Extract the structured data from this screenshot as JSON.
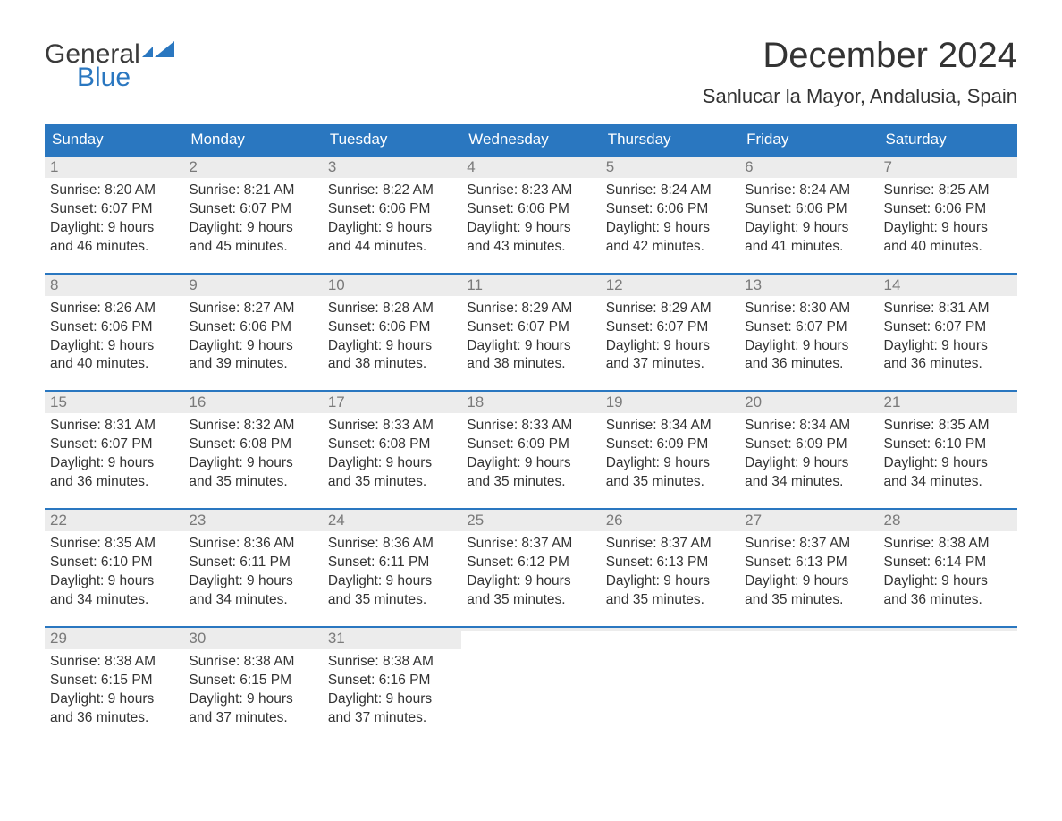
{
  "logo": {
    "line1": "General",
    "line2": "Blue",
    "flag_color": "#2a77c0"
  },
  "title": "December 2024",
  "location": "Sanlucar la Mayor, Andalusia, Spain",
  "colors": {
    "header_bg": "#2a77c0",
    "header_text": "#ffffff",
    "daynum_bg": "#ececec",
    "daynum_text": "#7a7a7a",
    "body_text": "#333333",
    "row_border": "#2a77c0"
  },
  "weekdays": [
    "Sunday",
    "Monday",
    "Tuesday",
    "Wednesday",
    "Thursday",
    "Friday",
    "Saturday"
  ],
  "weeks": [
    [
      {
        "n": "1",
        "sunrise": "Sunrise: 8:20 AM",
        "sunset": "Sunset: 6:07 PM",
        "d1": "Daylight: 9 hours",
        "d2": "and 46 minutes."
      },
      {
        "n": "2",
        "sunrise": "Sunrise: 8:21 AM",
        "sunset": "Sunset: 6:07 PM",
        "d1": "Daylight: 9 hours",
        "d2": "and 45 minutes."
      },
      {
        "n": "3",
        "sunrise": "Sunrise: 8:22 AM",
        "sunset": "Sunset: 6:06 PM",
        "d1": "Daylight: 9 hours",
        "d2": "and 44 minutes."
      },
      {
        "n": "4",
        "sunrise": "Sunrise: 8:23 AM",
        "sunset": "Sunset: 6:06 PM",
        "d1": "Daylight: 9 hours",
        "d2": "and 43 minutes."
      },
      {
        "n": "5",
        "sunrise": "Sunrise: 8:24 AM",
        "sunset": "Sunset: 6:06 PM",
        "d1": "Daylight: 9 hours",
        "d2": "and 42 minutes."
      },
      {
        "n": "6",
        "sunrise": "Sunrise: 8:24 AM",
        "sunset": "Sunset: 6:06 PM",
        "d1": "Daylight: 9 hours",
        "d2": "and 41 minutes."
      },
      {
        "n": "7",
        "sunrise": "Sunrise: 8:25 AM",
        "sunset": "Sunset: 6:06 PM",
        "d1": "Daylight: 9 hours",
        "d2": "and 40 minutes."
      }
    ],
    [
      {
        "n": "8",
        "sunrise": "Sunrise: 8:26 AM",
        "sunset": "Sunset: 6:06 PM",
        "d1": "Daylight: 9 hours",
        "d2": "and 40 minutes."
      },
      {
        "n": "9",
        "sunrise": "Sunrise: 8:27 AM",
        "sunset": "Sunset: 6:06 PM",
        "d1": "Daylight: 9 hours",
        "d2": "and 39 minutes."
      },
      {
        "n": "10",
        "sunrise": "Sunrise: 8:28 AM",
        "sunset": "Sunset: 6:06 PM",
        "d1": "Daylight: 9 hours",
        "d2": "and 38 minutes."
      },
      {
        "n": "11",
        "sunrise": "Sunrise: 8:29 AM",
        "sunset": "Sunset: 6:07 PM",
        "d1": "Daylight: 9 hours",
        "d2": "and 38 minutes."
      },
      {
        "n": "12",
        "sunrise": "Sunrise: 8:29 AM",
        "sunset": "Sunset: 6:07 PM",
        "d1": "Daylight: 9 hours",
        "d2": "and 37 minutes."
      },
      {
        "n": "13",
        "sunrise": "Sunrise: 8:30 AM",
        "sunset": "Sunset: 6:07 PM",
        "d1": "Daylight: 9 hours",
        "d2": "and 36 minutes."
      },
      {
        "n": "14",
        "sunrise": "Sunrise: 8:31 AM",
        "sunset": "Sunset: 6:07 PM",
        "d1": "Daylight: 9 hours",
        "d2": "and 36 minutes."
      }
    ],
    [
      {
        "n": "15",
        "sunrise": "Sunrise: 8:31 AM",
        "sunset": "Sunset: 6:07 PM",
        "d1": "Daylight: 9 hours",
        "d2": "and 36 minutes."
      },
      {
        "n": "16",
        "sunrise": "Sunrise: 8:32 AM",
        "sunset": "Sunset: 6:08 PM",
        "d1": "Daylight: 9 hours",
        "d2": "and 35 minutes."
      },
      {
        "n": "17",
        "sunrise": "Sunrise: 8:33 AM",
        "sunset": "Sunset: 6:08 PM",
        "d1": "Daylight: 9 hours",
        "d2": "and 35 minutes."
      },
      {
        "n": "18",
        "sunrise": "Sunrise: 8:33 AM",
        "sunset": "Sunset: 6:09 PM",
        "d1": "Daylight: 9 hours",
        "d2": "and 35 minutes."
      },
      {
        "n": "19",
        "sunrise": "Sunrise: 8:34 AM",
        "sunset": "Sunset: 6:09 PM",
        "d1": "Daylight: 9 hours",
        "d2": "and 35 minutes."
      },
      {
        "n": "20",
        "sunrise": "Sunrise: 8:34 AM",
        "sunset": "Sunset: 6:09 PM",
        "d1": "Daylight: 9 hours",
        "d2": "and 34 minutes."
      },
      {
        "n": "21",
        "sunrise": "Sunrise: 8:35 AM",
        "sunset": "Sunset: 6:10 PM",
        "d1": "Daylight: 9 hours",
        "d2": "and 34 minutes."
      }
    ],
    [
      {
        "n": "22",
        "sunrise": "Sunrise: 8:35 AM",
        "sunset": "Sunset: 6:10 PM",
        "d1": "Daylight: 9 hours",
        "d2": "and 34 minutes."
      },
      {
        "n": "23",
        "sunrise": "Sunrise: 8:36 AM",
        "sunset": "Sunset: 6:11 PM",
        "d1": "Daylight: 9 hours",
        "d2": "and 34 minutes."
      },
      {
        "n": "24",
        "sunrise": "Sunrise: 8:36 AM",
        "sunset": "Sunset: 6:11 PM",
        "d1": "Daylight: 9 hours",
        "d2": "and 35 minutes."
      },
      {
        "n": "25",
        "sunrise": "Sunrise: 8:37 AM",
        "sunset": "Sunset: 6:12 PM",
        "d1": "Daylight: 9 hours",
        "d2": "and 35 minutes."
      },
      {
        "n": "26",
        "sunrise": "Sunrise: 8:37 AM",
        "sunset": "Sunset: 6:13 PM",
        "d1": "Daylight: 9 hours",
        "d2": "and 35 minutes."
      },
      {
        "n": "27",
        "sunrise": "Sunrise: 8:37 AM",
        "sunset": "Sunset: 6:13 PM",
        "d1": "Daylight: 9 hours",
        "d2": "and 35 minutes."
      },
      {
        "n": "28",
        "sunrise": "Sunrise: 8:38 AM",
        "sunset": "Sunset: 6:14 PM",
        "d1": "Daylight: 9 hours",
        "d2": "and 36 minutes."
      }
    ],
    [
      {
        "n": "29",
        "sunrise": "Sunrise: 8:38 AM",
        "sunset": "Sunset: 6:15 PM",
        "d1": "Daylight: 9 hours",
        "d2": "and 36 minutes."
      },
      {
        "n": "30",
        "sunrise": "Sunrise: 8:38 AM",
        "sunset": "Sunset: 6:15 PM",
        "d1": "Daylight: 9 hours",
        "d2": "and 37 minutes."
      },
      {
        "n": "31",
        "sunrise": "Sunrise: 8:38 AM",
        "sunset": "Sunset: 6:16 PM",
        "d1": "Daylight: 9 hours",
        "d2": "and 37 minutes."
      },
      {
        "empty": true
      },
      {
        "empty": true
      },
      {
        "empty": true
      },
      {
        "empty": true
      }
    ]
  ]
}
